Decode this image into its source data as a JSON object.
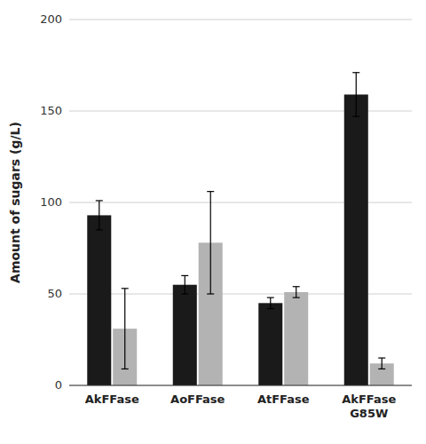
{
  "chart_data": {
    "type": "bar",
    "ylabel": "Amount of sugars (g/L)",
    "categories": [
      "AkFFase",
      "AoFFase",
      "AtFFase",
      "AkFFase\nG85W"
    ],
    "series": [
      {
        "color": "#1a1a1a",
        "values": [
          93,
          55,
          45,
          159
        ],
        "errors": [
          8,
          5,
          3,
          12
        ]
      },
      {
        "color": "#b3b3b3",
        "values": [
          31,
          78,
          51,
          12
        ],
        "errors": [
          22,
          28,
          3,
          3
        ]
      }
    ],
    "ylim": [
      0,
      200
    ],
    "yticks": [
      0,
      50,
      100,
      150,
      200
    ],
    "grid": true
  }
}
